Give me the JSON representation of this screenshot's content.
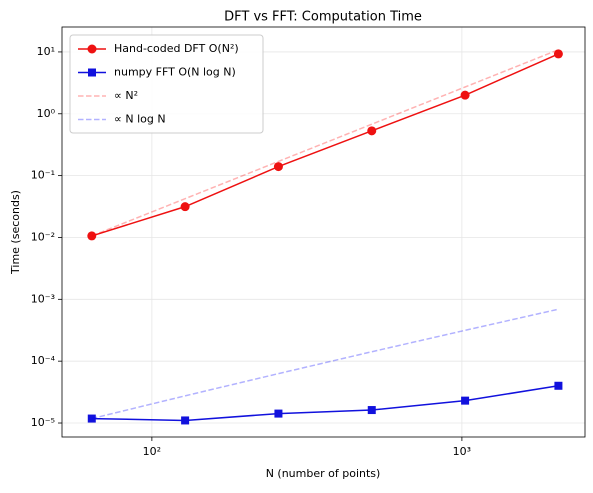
{
  "chart_data": {
    "type": "line",
    "title": "DFT vs FFT: Computation Time",
    "xlabel": "N (number of points)",
    "ylabel": "Time (seconds)",
    "x": [
      64,
      128,
      256,
      512,
      1024,
      2048
    ],
    "xscale": "log",
    "yscale": "log",
    "grid": true,
    "legend": "upper left",
    "xlim": [
      51.3,
      2495
    ],
    "ylim": [
      5.94e-06,
      25.3
    ],
    "xticks": [
      {
        "value": 100,
        "label": "10²"
      },
      {
        "value": 1000,
        "label": "10³"
      }
    ],
    "yticks": [
      {
        "value": 1e-05,
        "label": "10⁻⁵"
      },
      {
        "value": 0.0001,
        "label": "10⁻⁴"
      },
      {
        "value": 0.001,
        "label": "10⁻³"
      },
      {
        "value": 0.01,
        "label": "10⁻²"
      },
      {
        "value": 0.1,
        "label": "10⁻¹"
      },
      {
        "value": 1,
        "label": "10⁰"
      },
      {
        "value": 10,
        "label": "10¹"
      }
    ],
    "series": [
      {
        "name": "Hand-coded DFT O(N²)",
        "color": "#ee1111",
        "marker": "circle",
        "linestyle": "solid",
        "alpha": 1,
        "values": [
          0.0106,
          0.0315,
          0.14,
          0.53,
          2.0,
          9.3
        ]
      },
      {
        "name": "numpy FFT O(N log N)",
        "color": "#1111dd",
        "marker": "square",
        "linestyle": "solid",
        "alpha": 1,
        "values": [
          1.18e-05,
          1.1e-05,
          1.42e-05,
          1.62e-05,
          2.3e-05,
          4e-05
        ]
      },
      {
        "name": "∝ N²",
        "color": "#ff0000",
        "marker": null,
        "linestyle": "dashed",
        "alpha": 0.3,
        "values": [
          0.0106,
          0.0424,
          0.1696,
          0.678,
          2.71,
          10.85
        ]
      },
      {
        "name": "∝ N log N",
        "color": "#0000ff",
        "marker": null,
        "linestyle": "dashed",
        "alpha": 0.3,
        "values": [
          1.18e-05,
          2.75e-05,
          6.29e-05,
          0.000142,
          0.000315,
          0.000692
        ]
      }
    ]
  }
}
